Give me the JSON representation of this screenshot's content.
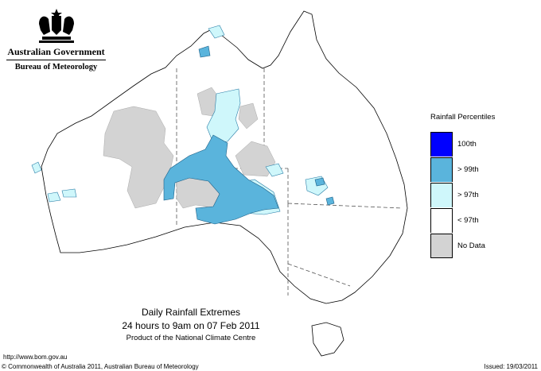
{
  "header": {
    "government": "Australian Government",
    "bureau": "Bureau of Meteorology"
  },
  "legend": {
    "title": "Rainfall Percentiles",
    "items": [
      {
        "label": "100th",
        "color": "#0000ff"
      },
      {
        "label": "> 99th",
        "color": "#5ab4dc"
      },
      {
        "label": "> 97th",
        "color": "#cff7fb"
      },
      {
        "label": "< 97th",
        "color": "#ffffff"
      },
      {
        "label": "No Data",
        "color": "#d3d3d3"
      }
    ]
  },
  "caption": {
    "line1": "Daily Rainfall Extremes",
    "line2": "24 hours to 9am on 07 Feb 2011",
    "line3": "Product of the National Climate Centre"
  },
  "footer": {
    "url": "http://www.bom.gov.au",
    "copyright": "© Commonwealth of Australia 2011, Australian Bureau of Meteorology",
    "issued": "Issued: 19/03/2011"
  },
  "colors": {
    "no_data": "#d3d3d3",
    "p97": "#cff7fb",
    "p99": "#5ab4dc",
    "p100": "#0000ff"
  }
}
